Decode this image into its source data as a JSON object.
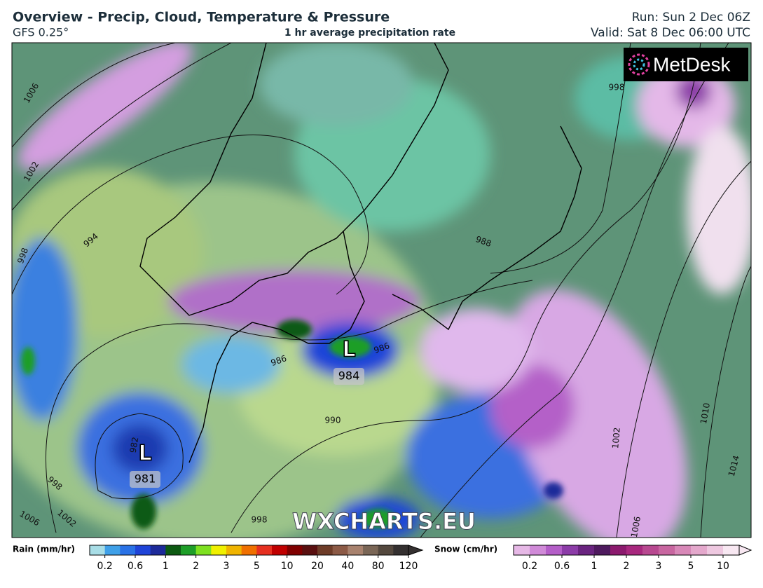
{
  "header": {
    "title": "Overview - Precip, Cloud, Temperature & Pressure",
    "model": "GFS 0.25°",
    "subtitle": "1 hr average precipitation rate",
    "run": "Run: Sun 2 Dec 06Z",
    "valid": "Valid: Sat 8 Dec 06:00 UTC"
  },
  "map": {
    "logo": "MetDesk",
    "watermark": "WXCHARTS.EU",
    "lows": [
      {
        "symbol": "L",
        "pressure": 984
      },
      {
        "symbol": "L",
        "pressure": 981
      }
    ],
    "isobar_labels": [
      1006,
      1002,
      998,
      994,
      986,
      986,
      990,
      982,
      998,
      1006,
      1002,
      998,
      1006,
      1010,
      1014,
      1002,
      998,
      988
    ]
  },
  "legend": {
    "rain": {
      "label": "Rain (mm/hr)",
      "ticks": [
        0.2,
        0.6,
        1,
        2,
        3,
        5,
        10,
        20,
        40,
        80,
        120
      ],
      "colors": [
        "#a8dde6",
        "#3fa0e8",
        "#2a72e6",
        "#1f44d8",
        "#1d2a9a",
        "#0d5a12",
        "#1e9e28",
        "#7ee020",
        "#f0f000",
        "#f0b400",
        "#f07000",
        "#e63020",
        "#c00000",
        "#800000",
        "#5a1010",
        "#6e3c28",
        "#8c5a46",
        "#a8826e",
        "#7a6656",
        "#54483e",
        "#343030"
      ]
    },
    "snow": {
      "label": "Snow (cm/hr)",
      "ticks": [
        0.2,
        0.6,
        1,
        2,
        3,
        5,
        10
      ],
      "colors": [
        "#e6b8e6",
        "#d08ad8",
        "#b45ec8",
        "#8c3ca8",
        "#6a2480",
        "#4e1a5e",
        "#8c1a6e",
        "#a8287e",
        "#b84890",
        "#c866a0",
        "#d888b8",
        "#e4a8cc",
        "#eec8e0",
        "#f8e8f2"
      ]
    }
  }
}
